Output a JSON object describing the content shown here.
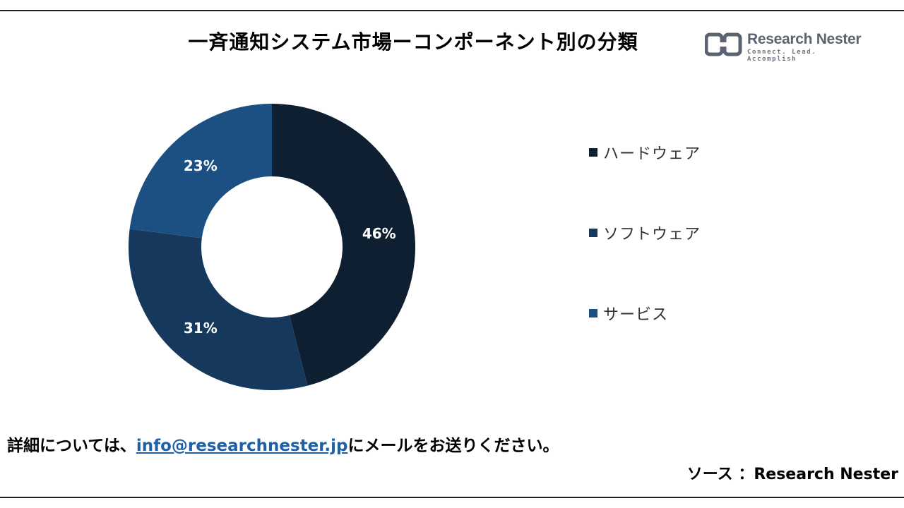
{
  "title": "一斉通知システム市場ーコンポーネント別の分類",
  "logo": {
    "name": "Research Nester",
    "tagline": "Connect. Lead. Accomplish"
  },
  "chart_data": {
    "type": "pie",
    "donut": true,
    "legend_position": "right",
    "categories": [
      "ハードウェア",
      "ソフトウェア",
      "サービス"
    ],
    "values": [
      46,
      31,
      23
    ],
    "labels": [
      "46%",
      "31%",
      "23%"
    ],
    "colors": [
      "#0d1f30",
      "#16385c",
      "#1d5082"
    ]
  },
  "footer": {
    "prefix": "詳細については、",
    "email": "info@researchnester.jp",
    "suffix": "にメールをお送りください。"
  },
  "source": "ソース ：Research Nester"
}
